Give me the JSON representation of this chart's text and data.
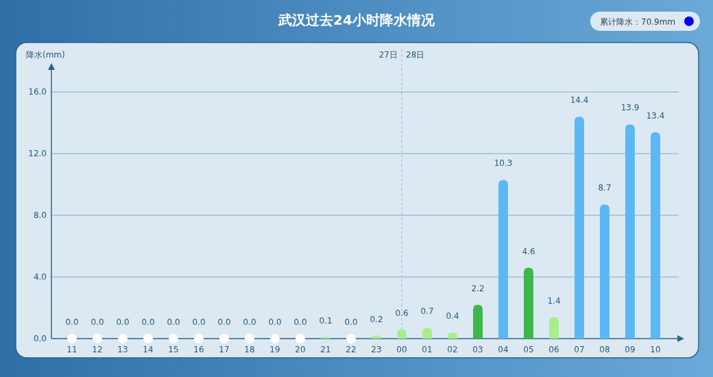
{
  "chart_data": {
    "type": "bar",
    "title": "武汉过去24小时降水情况",
    "ylabel": "降水(mm)",
    "categories": [
      "11",
      "12",
      "13",
      "14",
      "15",
      "16",
      "17",
      "18",
      "19",
      "20",
      "21",
      "22",
      "23",
      "00",
      "01",
      "02",
      "03",
      "04",
      "05",
      "06",
      "07",
      "08",
      "09",
      "10"
    ],
    "values": [
      0,
      0,
      0,
      0,
      0,
      0,
      0,
      0,
      0,
      0,
      0.1,
      0,
      0.2,
      0.6,
      0.7,
      0.4,
      2.2,
      10.3,
      4.6,
      1.4,
      14.4,
      8.7,
      13.9,
      13.4
    ],
    "colors": [
      "#ffffff",
      "#ffffff",
      "#ffffff",
      "#ffffff",
      "#ffffff",
      "#ffffff",
      "#ffffff",
      "#ffffff",
      "#ffffff",
      "#ffffff",
      "#a6ef8a",
      "#ffffff",
      "#a6ef8a",
      "#a6ef8a",
      "#a6ef8a",
      "#a6ef8a",
      "#3cb84a",
      "#5bb8f5",
      "#3cb84a",
      "#a6ef8a",
      "#5bb8f5",
      "#5bb8f5",
      "#5bb8f5",
      "#5bb8f5"
    ],
    "value_labels": [
      "0.0",
      "0.0",
      "0.0",
      "0.0",
      "0.0",
      "0.0",
      "0.0",
      "0.0",
      "0.0",
      "0.0",
      "0.1",
      "0.0",
      "0.2",
      "0.6",
      "0.7",
      "0.4",
      "2.2",
      "10.3",
      "4.6",
      "1.4",
      "14.4",
      "8.7",
      "13.9",
      "13.4"
    ],
    "ylim": [
      0,
      17.7
    ],
    "yticks": [
      {
        "value": 0,
        "label": "0.0"
      },
      {
        "value": 4,
        "label": "4.0"
      },
      {
        "value": 8,
        "label": "8.0"
      },
      {
        "value": 12,
        "label": "12.0"
      },
      {
        "value": 16,
        "label": "16.0"
      }
    ],
    "grid": "y",
    "ref_lines": [
      {
        "axis": "x",
        "value": "00",
        "label": "28日",
        "color": "#9fb8c8",
        "line_style": "dashed"
      }
    ],
    "annotations": [
      {
        "text": "27日",
        "x": "00"
      },
      "累计降水：70.9mm"
    ]
  }
}
